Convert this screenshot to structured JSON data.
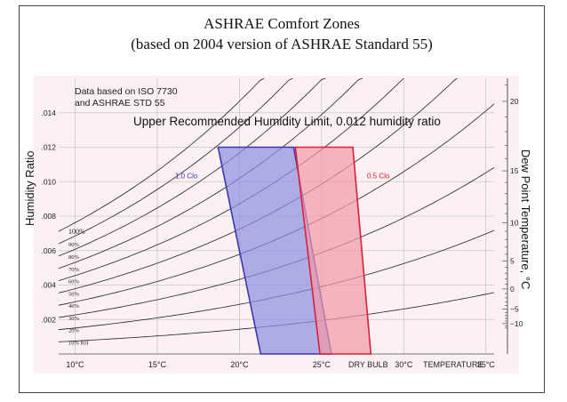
{
  "slide": {
    "title_line1": "ASHRAE Comfort Zones",
    "title_line2": "(based on 2004 version of ASHRAE Standard 55)"
  },
  "chart_data": {
    "type": "area",
    "title": "Upper Recommended Humidity Limit, 0.012 humidity ratio",
    "note_line1": "Data based on ISO 7730",
    "note_line2": "and ASHRAE STD 55",
    "xlabel": "DRY BULB   TEMPERATURE",
    "ylabel": "Humidity Ratio",
    "y2label": "Dew Point Temperature, °C",
    "xlim": [
      9,
      35.5
    ],
    "ylim": [
      0,
      0.016
    ],
    "x_ticks": [
      "10°C",
      "15°C",
      "20°C",
      "25°C",
      "30°C",
      "35°C"
    ],
    "x_tick_values": [
      10,
      15,
      20,
      25,
      30,
      35
    ],
    "x_label_1": "DRY BULB",
    "x_label_2": "TEMPERATURE",
    "y_ticks": [
      ".002",
      ".004",
      ".006",
      ".008",
      ".010",
      ".012",
      ".014"
    ],
    "y_tick_values": [
      0.002,
      0.004,
      0.006,
      0.008,
      0.01,
      0.012,
      0.014
    ],
    "dew_point_ticks": [
      "20",
      "15",
      "10",
      "5",
      "0",
      "−5",
      "−10"
    ],
    "dew_point_values": [
      20,
      15,
      10,
      5,
      0,
      -5,
      -10
    ],
    "rh_curves": [
      "100%",
      "90%",
      "80%",
      "70%",
      "60%",
      "50%",
      "40%",
      "30%",
      "20%",
      "10% RH"
    ],
    "rh_values": [
      100,
      90,
      80,
      70,
      60,
      50,
      40,
      30,
      20,
      10
    ],
    "series": [
      {
        "name": "1.0 Clo",
        "color": "#3a36b0",
        "fill": "#8c8ee0",
        "points": [
          [
            18.7,
            0.012
          ],
          [
            23.3,
            0.012
          ],
          [
            25.6,
            0.0
          ],
          [
            21.3,
            0.0
          ]
        ]
      },
      {
        "name": "0.5 Clo",
        "color": "#d8203a",
        "fill": "#f19aa6",
        "points": [
          [
            23.4,
            0.012
          ],
          [
            26.9,
            0.012
          ],
          [
            28.0,
            0.0
          ],
          [
            24.9,
            0.0
          ]
        ]
      }
    ],
    "humidity_limit": 0.012,
    "grid": true,
    "colors": {
      "background": "#fdf0f2",
      "grid": "#c8c8c8",
      "curves": "#222222"
    }
  }
}
